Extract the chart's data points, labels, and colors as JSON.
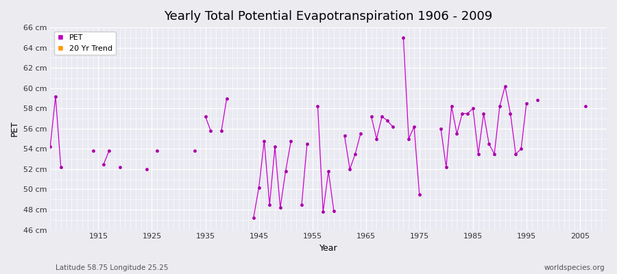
{
  "title": "Yearly Total Potential Evapotranspiration 1906 - 2009",
  "xlabel": "Year",
  "ylabel": "PET",
  "subtitle_left": "Latitude 58.75 Longitude 25.25",
  "subtitle_right": "worldspecies.org",
  "legend": [
    "PET",
    "20 Yr Trend"
  ],
  "legend_colors": [
    "#bb00bb",
    "#ff9900"
  ],
  "bg_color": "#ebebf0",
  "plot_bg_color": "#eaeaf2",
  "grid_color": "#d8d8e8",
  "ylim": [
    46,
    66
  ],
  "ytick_labels": [
    "46 cm",
    "48 cm",
    "50 cm",
    "52 cm",
    "54 cm",
    "56 cm",
    "58 cm",
    "60 cm",
    "62 cm",
    "64 cm",
    "66 cm"
  ],
  "ytick_values": [
    46,
    48,
    50,
    52,
    54,
    56,
    58,
    60,
    62,
    64,
    66
  ],
  "xlim": [
    1906,
    2010
  ],
  "xtick_values": [
    1915,
    1925,
    1935,
    1945,
    1955,
    1965,
    1975,
    1985,
    1995,
    2005
  ],
  "sparse_years": [
    1906,
    1907,
    1908,
    null,
    null,
    null,
    null,
    1914,
    null,
    1916,
    1917,
    null,
    null,
    1919,
    null,
    null,
    null,
    null,
    null,
    1924,
    null,
    1926,
    null,
    null,
    null,
    null,
    null,
    null,
    null,
    null,
    null,
    null,
    null,
    1933,
    null,
    1935,
    1936,
    null,
    1938,
    1939,
    null,
    null,
    null,
    null,
    null,
    null,
    null,
    null,
    null,
    null,
    null,
    null,
    1944,
    1945,
    1946,
    1947,
    1948,
    1949,
    1950,
    1951,
    null,
    1953,
    1954,
    null,
    1956,
    1957,
    1958,
    1959,
    null,
    null,
    1961,
    1962,
    1963,
    1964,
    null,
    1966,
    1967,
    1968,
    1969,
    1970,
    null,
    1972,
    1973,
    1974,
    1975,
    null,
    null,
    null,
    null,
    1979,
    1980,
    1981,
    1982,
    1983,
    1984,
    1985,
    1986,
    1987,
    1988,
    1989,
    1990,
    1991,
    1992,
    1993,
    1994,
    1995,
    null,
    1997,
    null,
    null,
    null,
    null,
    null,
    null,
    null,
    null,
    2006
  ],
  "sparse_values": [
    54.2,
    59.2,
    52.2,
    null,
    null,
    null,
    null,
    53.8,
    null,
    52.5,
    53.8,
    null,
    null,
    52.2,
    null,
    null,
    null,
    null,
    null,
    52.0,
    null,
    53.8,
    null,
    null,
    null,
    null,
    null,
    null,
    null,
    null,
    null,
    null,
    null,
    53.8,
    null,
    57.2,
    55.8,
    null,
    55.8,
    59.0,
    null,
    null,
    null,
    null,
    null,
    null,
    null,
    null,
    null,
    null,
    null,
    null,
    47.2,
    50.2,
    54.8,
    48.5,
    54.2,
    48.2,
    51.8,
    54.8,
    null,
    48.5,
    54.5,
    null,
    58.2,
    47.8,
    51.8,
    47.9,
    null,
    null,
    55.3,
    52.0,
    53.5,
    55.5,
    null,
    57.2,
    55.0,
    57.2,
    56.8,
    56.2,
    null,
    65.0,
    55.0,
    56.2,
    49.5,
    null,
    null,
    null,
    null,
    56.0,
    52.2,
    58.2,
    55.5,
    57.5,
    57.5,
    58.0,
    53.5,
    57.5,
    54.5,
    53.5,
    58.2,
    60.2,
    57.5,
    53.5,
    54.0,
    58.5,
    null,
    58.8,
    null,
    null,
    null,
    null,
    null,
    null,
    null,
    null,
    58.2
  ],
  "line_color": "#cc00cc",
  "marker_color": "#aa00aa",
  "marker_size": 3.5,
  "title_fontsize": 13
}
